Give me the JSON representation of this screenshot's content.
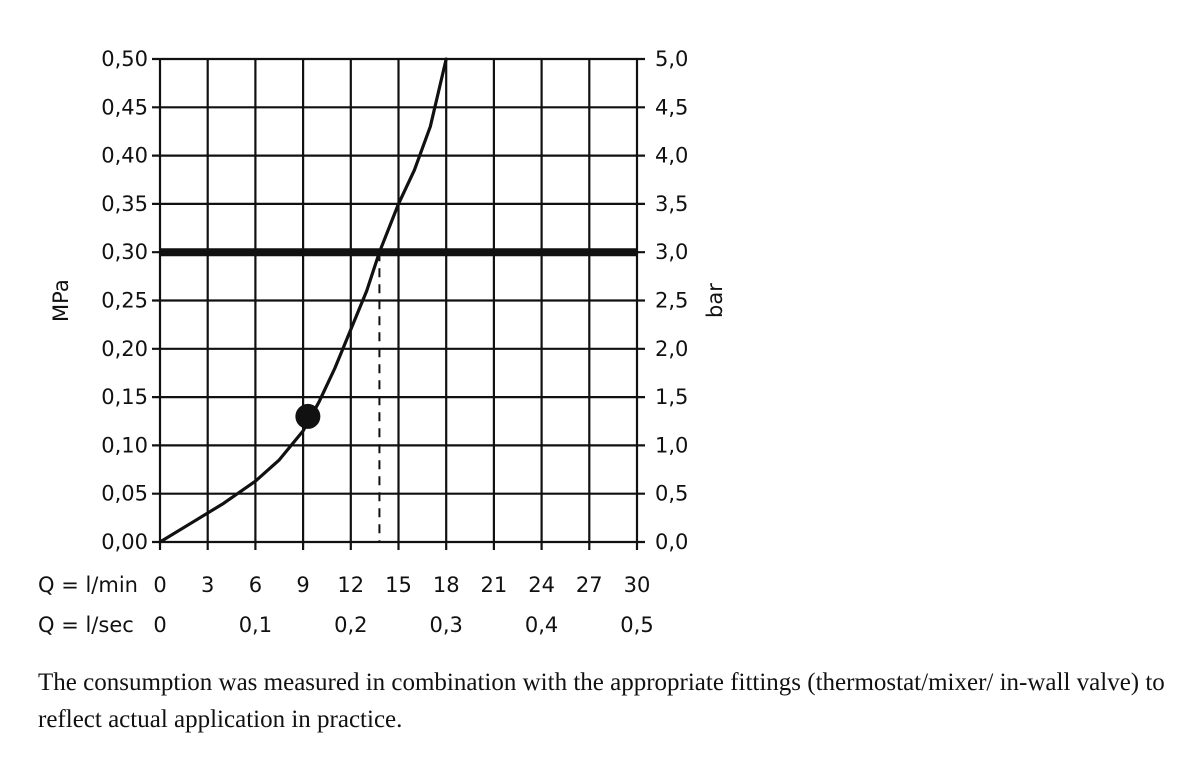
{
  "chart_data": {
    "type": "line",
    "y_left": {
      "label": "MPa",
      "range": [
        0,
        0.5
      ],
      "ticks": [
        "0,00",
        "0,05",
        "0,10",
        "0,15",
        "0,20",
        "0,25",
        "0,30",
        "0,35",
        "0,40",
        "0,45",
        "0,50"
      ]
    },
    "y_right": {
      "label": "bar",
      "range": [
        0,
        5
      ],
      "ticks": [
        "0,0",
        "0,5",
        "1,0",
        "1,5",
        "2,0",
        "2,5",
        "3,0",
        "3,5",
        "4,0",
        "4,5",
        "5,0"
      ]
    },
    "x_primary": {
      "label": "Q = l/min",
      "range": [
        0,
        30
      ],
      "ticks": [
        "0",
        "3",
        "6",
        "9",
        "12",
        "15",
        "18",
        "21",
        "24",
        "27",
        "30"
      ]
    },
    "x_secondary": {
      "label": "Q = l/sec",
      "ticks": [
        "0",
        "0,1",
        "0,2",
        "0,3",
        "0,4",
        "0,5"
      ]
    },
    "grid": true,
    "series": [
      {
        "x": [
          0,
          2,
          4,
          6,
          7.5,
          9,
          10,
          11,
          12,
          13,
          13.8,
          15,
          16,
          17,
          17.5,
          18
        ],
        "y": [
          0,
          0.02,
          0.04,
          0.063,
          0.085,
          0.115,
          0.145,
          0.18,
          0.22,
          0.26,
          0.3,
          0.35,
          0.385,
          0.43,
          0.465,
          0.5
        ]
      }
    ],
    "reference_line": {
      "y": 0.3
    },
    "marker_point": {
      "x": 9.3,
      "y": 0.13
    },
    "dashed_drop": {
      "x": 13.8,
      "y_from": 0.3,
      "y_to": 0
    }
  },
  "caption": "The consumption was measured in combination with the appropriate fittings (thermostat/mixer/ in-wall valve) to reflect actual application in practice."
}
